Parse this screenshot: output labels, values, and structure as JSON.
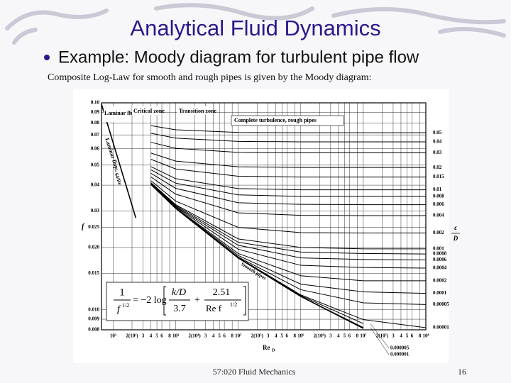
{
  "slide": {
    "title": "Analytical Fluid Dynamics",
    "bullet": "Example: Moody diagram for turbulent pipe flow",
    "caption": "Composite Log-Law for smooth and rough pipes is given by the Moody diagram:",
    "footer": "57:020 Fluid Mechanics",
    "page_number": 16
  },
  "chart_data": {
    "type": "line",
    "log_x": true,
    "log_y": true,
    "grid": true,
    "color": "#000000",
    "xlabel": "Re",
    "xlabel_sub": "D",
    "ylabel": "f",
    "y2label_num": "ε",
    "y2label_den": "D",
    "annotations": [
      "Laminar flow",
      "Critical zone",
      "Transition zone",
      "Complete turbulence, rough pipes",
      "Laminar flow"
    ],
    "equation": {
      "lhs_num": "1",
      "lhs_den": "f",
      "exp1": "1/2",
      "eq": "= −2 log",
      "t1_num": "k/D",
      "t1_den": "3.7",
      "plus": "+",
      "t2_num": "2.51",
      "t2_den": "Re f",
      "exp2": "1/2"
    },
    "xlim": [
      650,
      100000000
    ],
    "ylim": [
      0.008,
      0.1
    ],
    "xticks": [
      {
        "value": 1000,
        "label": "10³"
      },
      {
        "value": 2000,
        "label": "2(10³)"
      },
      {
        "value": 3000,
        "label": "3"
      },
      {
        "value": 4000,
        "label": "4"
      },
      {
        "value": 5000,
        "label": "5"
      },
      {
        "value": 6000,
        "label": "6"
      },
      {
        "value": 8000,
        "label": "8"
      },
      {
        "value": 10000,
        "label": "10⁴"
      },
      {
        "value": 20000,
        "label": "2(10⁴)"
      },
      {
        "value": 30000,
        "label": "3"
      },
      {
        "value": 40000,
        "label": "4"
      },
      {
        "value": 50000,
        "label": "5"
      },
      {
        "value": 60000,
        "label": "6"
      },
      {
        "value": 80000,
        "label": "8"
      },
      {
        "value": 100000,
        "label": "10⁵"
      },
      {
        "value": 200000,
        "label": "2(10⁵)"
      },
      {
        "value": 300000,
        "label": "3"
      },
      {
        "value": 400000,
        "label": "4"
      },
      {
        "value": 500000,
        "label": "5"
      },
      {
        "value": 600000,
        "label": "6"
      },
      {
        "value": 800000,
        "label": "8"
      },
      {
        "value": 1000000,
        "label": "10⁶"
      },
      {
        "value": 2000000,
        "label": "2(10⁶)"
      },
      {
        "value": 3000000,
        "label": "3"
      },
      {
        "value": 4000000,
        "label": "4"
      },
      {
        "value": 5000000,
        "label": "5"
      },
      {
        "value": 6000000,
        "label": "6"
      },
      {
        "value": 8000000,
        "label": "8"
      },
      {
        "value": 10000000,
        "label": "10⁷"
      },
      {
        "value": 20000000,
        "label": "2(10⁷)"
      },
      {
        "value": 30000000,
        "label": "3"
      },
      {
        "value": 40000000,
        "label": "4"
      },
      {
        "value": 50000000,
        "label": "5"
      },
      {
        "value": 60000000,
        "label": "6"
      },
      {
        "value": 80000000,
        "label": "8"
      },
      {
        "value": 100000000,
        "label": "10⁸"
      }
    ],
    "yticks": [
      {
        "value": 0.1,
        "label": "0.10"
      },
      0.09,
      0.08,
      0.07,
      0.06,
      0.05,
      0.04,
      0.03,
      0.025,
      {
        "value": 0.02,
        "label": "0.020"
      },
      0.015,
      {
        "value": 0.01,
        "label": "0.010"
      },
      0.009,
      0.008
    ],
    "x": [
      4000,
      10000,
      100000,
      1000000,
      10000000,
      100000000
    ],
    "series": [
      {
        "name": "f = 64/Re",
        "x": [
          640,
          2300
        ],
        "values": [
          0.1,
          0.0278
        ]
      },
      {
        "name": "Smooth pipes",
        "values": [
          0.0404,
          0.0309,
          0.0178,
          0.0116,
          0.00813,
          null
        ]
      },
      {
        "name": "0.05",
        "values": [
          0.0776,
          0.0741,
          0.0719,
          0.0717,
          0.0717,
          0.0717
        ]
      },
      {
        "name": "0.04",
        "values": [
          0.0713,
          0.0675,
          0.0651,
          0.0648,
          0.0648,
          0.0648
        ]
      },
      {
        "name": "0.03",
        "values": [
          0.0645,
          0.0603,
          0.0576,
          0.0573,
          0.0573,
          0.0573
        ]
      },
      {
        "name": "0.02",
        "values": [
          0.0572,
          0.0523,
          0.0491,
          0.0487,
          0.0487,
          0.0487
        ]
      },
      {
        "name": "0.015",
        "values": [
          0.0534,
          0.0479,
          0.0442,
          0.0438,
          0.0438,
          0.0438
        ]
      },
      {
        "name": "0.01",
        "values": [
          0.0492,
          0.043,
          0.0385,
          0.038,
          0.038,
          0.038
        ]
      },
      {
        "name": "0.008",
        "values": [
          0.0475,
          0.0409,
          0.0359,
          0.0353,
          0.0353,
          0.0353
        ]
      },
      {
        "name": "0.006",
        "values": [
          0.0457,
          0.0386,
          0.0329,
          0.0323,
          0.0322,
          0.0322
        ]
      },
      {
        "name": "0.004",
        "values": [
          0.0439,
          0.0362,
          0.0294,
          0.0286,
          0.0285,
          0.0285
        ]
      },
      {
        "name": "0.002",
        "values": [
          0.0421,
          0.0335,
          0.025,
          0.0236,
          0.0235,
          0.0235
        ]
      },
      {
        "name": "0.001",
        "values": [
          0.0412,
          0.0322,
          0.022,
          0.02,
          0.0197,
          0.0197
        ]
      },
      {
        "name": "0.0008",
        "values": [
          0.041,
          0.0319,
          0.0212,
          0.019,
          0.0187,
          0.0186
        ]
      },
      {
        "name": "0.0006",
        "values": [
          0.0409,
          0.0316,
          0.0205,
          0.0178,
          0.0175,
          0.0174
        ]
      },
      {
        "name": "0.0004",
        "values": [
          0.0407,
          0.0314,
          0.0196,
          0.0164,
          0.016,
          0.0159
        ]
      },
      {
        "name": "0.0002",
        "values": [
          0.0406,
          0.0311,
          0.0187,
          0.0146,
          0.0138,
          0.0138
        ]
      },
      {
        "name": "0.0001",
        "values": [
          0.0405,
          0.031,
          0.0183,
          0.0133,
          0.0122,
          0.012
        ]
      },
      {
        "name": "0.00005",
        "values": [
          0.0405,
          0.0309,
          0.018,
          0.0125,
          0.0108,
          0.0106
        ]
      },
      {
        "name": "0.00001",
        "values": [
          0.0404,
          0.0309,
          0.0179,
          0.0118,
          0.00896,
          0.00819
        ]
      },
      {
        "name": "0.000005",
        "values": [
          0.0404,
          0.0309,
          0.0178,
          0.0117,
          0.00857,
          null
        ]
      },
      {
        "name": "0.000001",
        "values": [
          0.0404,
          0.0309,
          0.0178,
          0.0116,
          0.00821,
          null
        ]
      }
    ]
  }
}
